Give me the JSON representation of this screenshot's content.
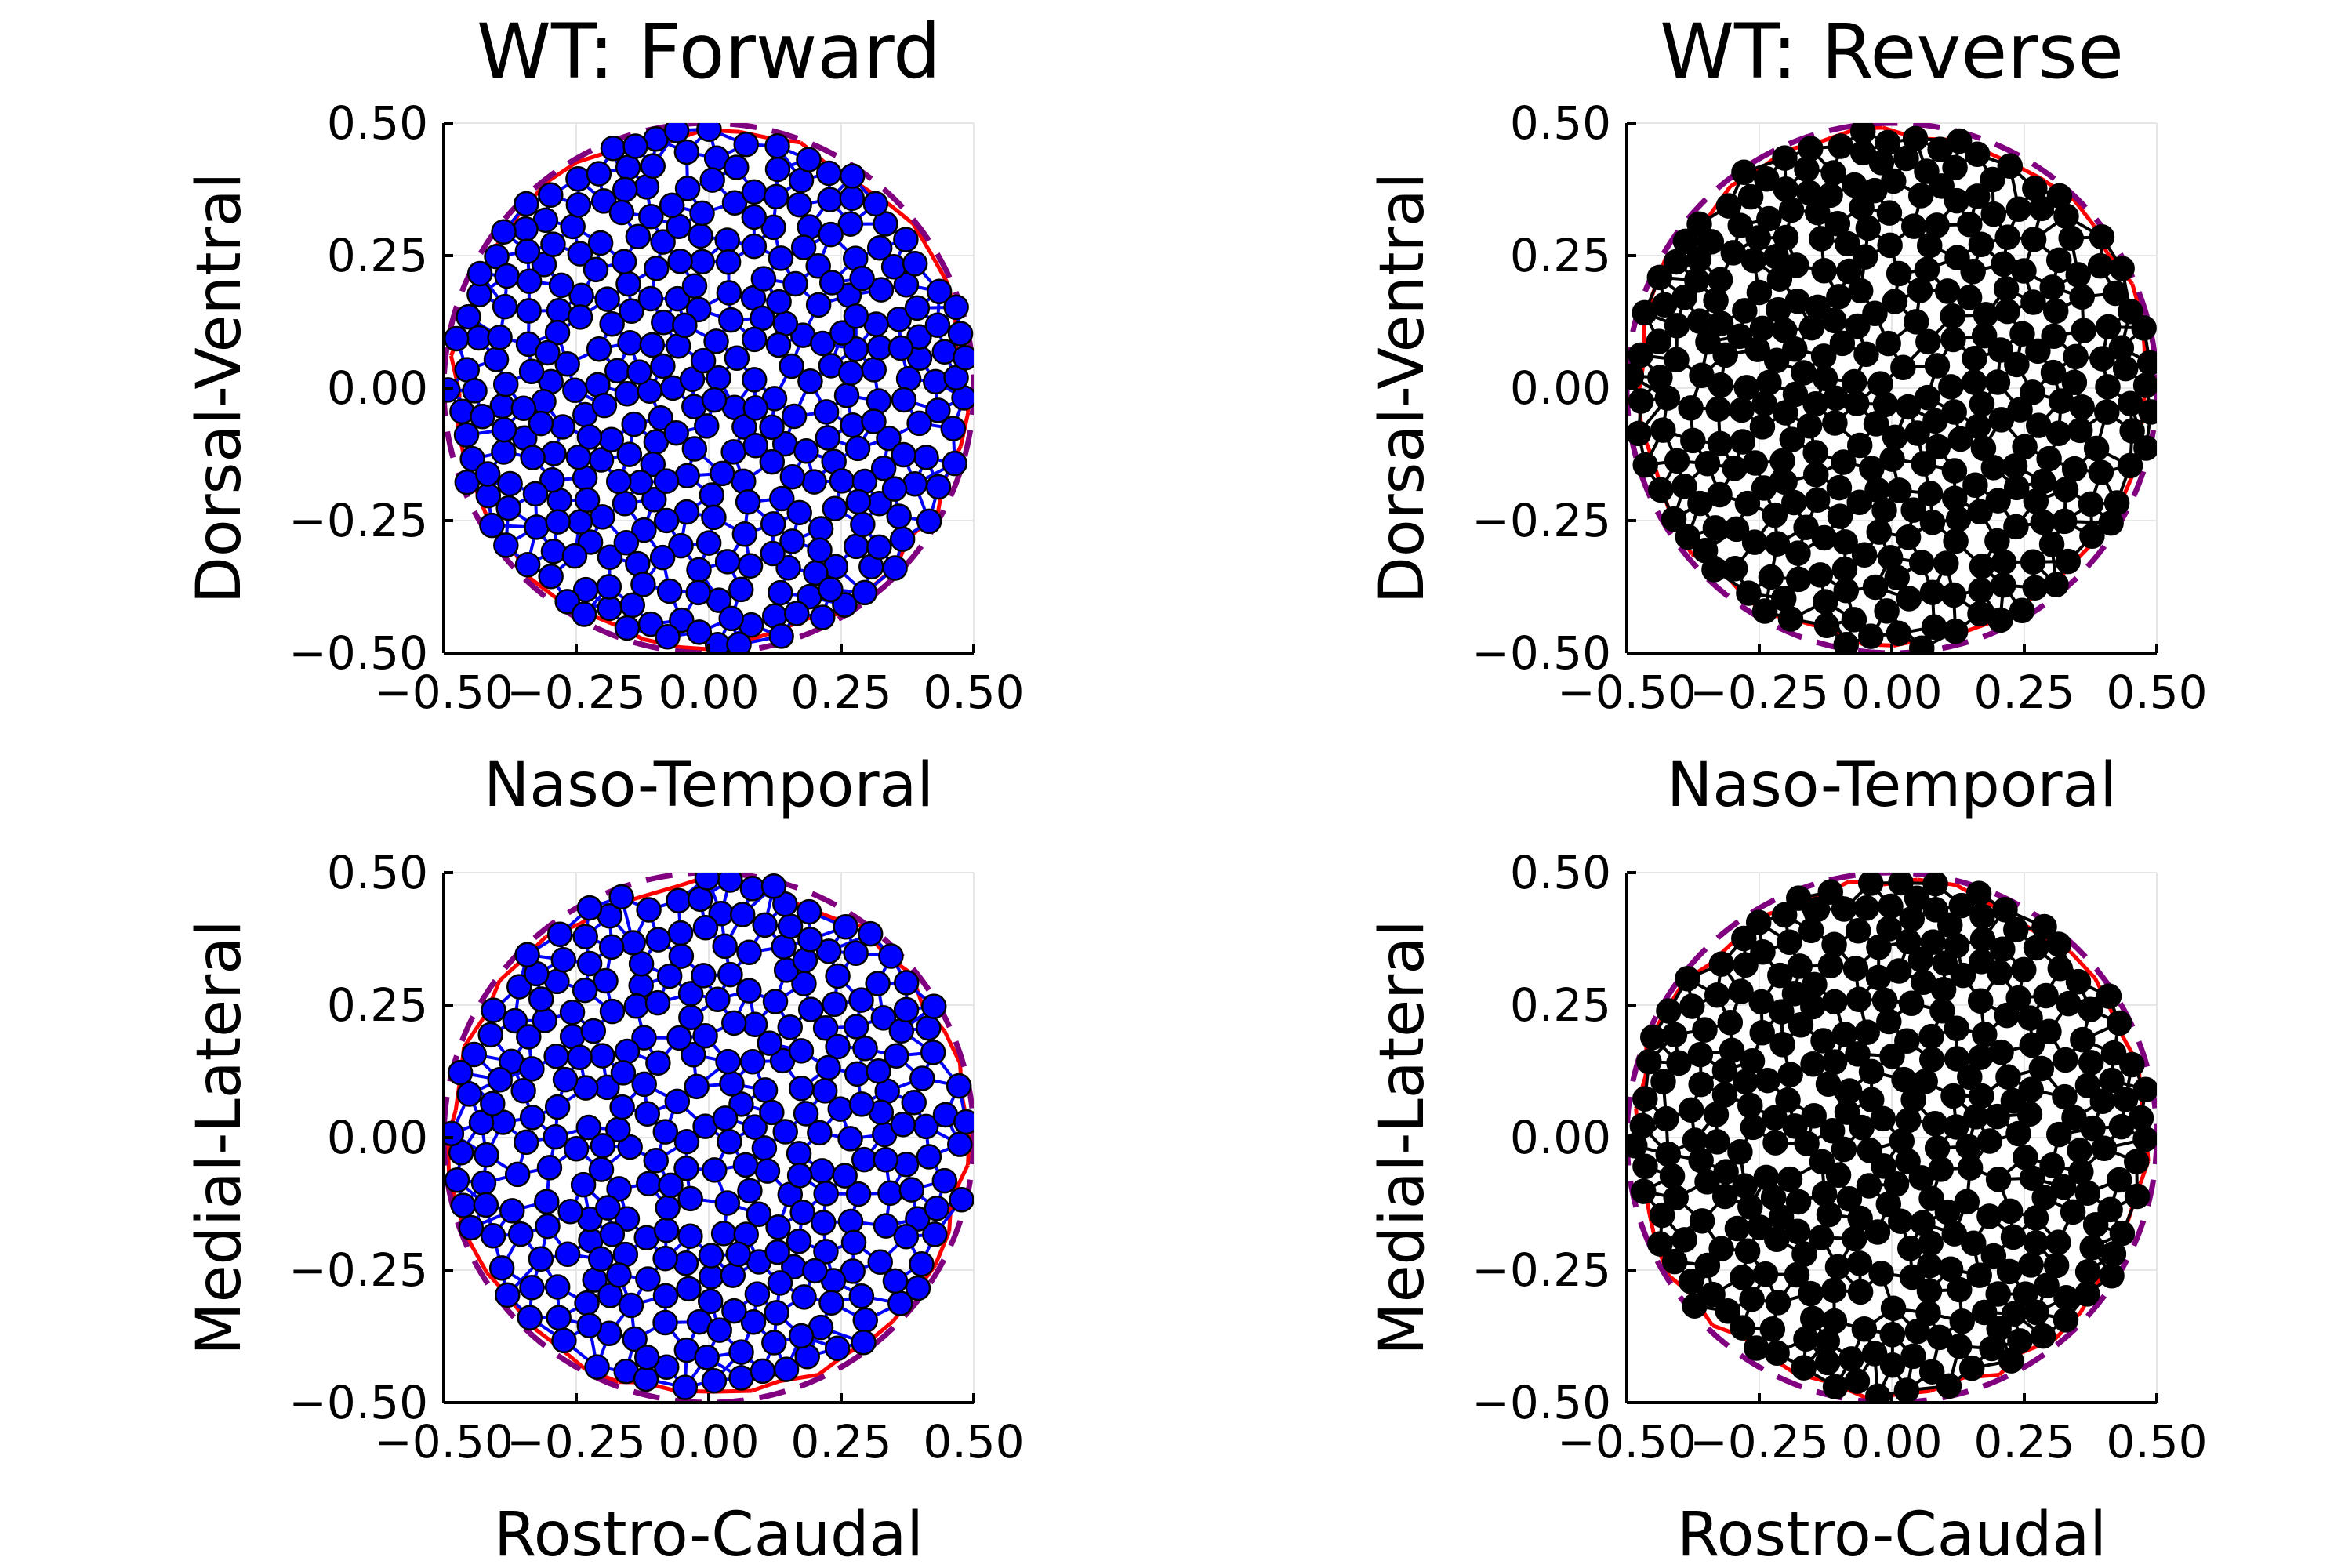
{
  "chart_data": [
    {
      "type": "scatter",
      "title": "WT: Forward",
      "xlabel": "Naso-Temporal",
      "ylabel": "Dorsal-Ventral",
      "xlim": [
        -0.5,
        0.5
      ],
      "ylim": [
        -0.5,
        0.5
      ],
      "xticks": [
        "−0.50",
        "−0.25",
        "0.00",
        "0.25",
        "0.50"
      ],
      "yticks": [
        "−0.50",
        "−0.25",
        "0.00",
        "0.25",
        "0.50"
      ],
      "grid": true,
      "point_color": "#0000ff",
      "edge_color": "#0000ff",
      "boundary_edge_color": "#ff0000",
      "circle": {
        "center": [
          0,
          0
        ],
        "radius": 0.5,
        "color": "#800080",
        "style": "dashed"
      },
      "points_estimated_count": 330
    },
    {
      "type": "scatter",
      "title": "WT: Reverse",
      "xlabel": "Naso-Temporal",
      "ylabel": "Dorsal-Ventral",
      "xlim": [
        -0.5,
        0.5
      ],
      "ylim": [
        -0.5,
        0.5
      ],
      "xticks": [
        "−0.50",
        "−0.25",
        "0.00",
        "0.25",
        "0.50"
      ],
      "yticks": [
        "−0.50",
        "−0.25",
        "0.00",
        "0.25",
        "0.50"
      ],
      "grid": true,
      "point_color": "#000000",
      "edge_color": "#000000",
      "boundary_edge_color": "#ff0000",
      "circle": {
        "center": [
          0,
          0
        ],
        "radius": 0.5,
        "color": "#800080",
        "style": "dashed"
      },
      "points_estimated_count": 330
    },
    {
      "type": "scatter",
      "title": "",
      "xlabel": "Rostro-Caudal",
      "ylabel": "Medial-Lateral",
      "xlim": [
        -0.5,
        0.5
      ],
      "ylim": [
        -0.5,
        0.5
      ],
      "xticks": [
        "−0.50",
        "−0.25",
        "0.00",
        "0.25",
        "0.50"
      ],
      "yticks": [
        "−0.50",
        "−0.25",
        "0.00",
        "0.25",
        "0.50"
      ],
      "grid": true,
      "point_color": "#0000ff",
      "edge_color": "#0000ff",
      "boundary_edge_color": "#ff0000",
      "circle": {
        "center": [
          0,
          0
        ],
        "radius": 0.5,
        "color": "#800080",
        "style": "dashed"
      },
      "points_estimated_count": 300
    },
    {
      "type": "scatter",
      "title": "",
      "xlabel": "Rostro-Caudal",
      "ylabel": "Medial-Lateral",
      "xlim": [
        -0.5,
        0.5
      ],
      "ylim": [
        -0.5,
        0.5
      ],
      "xticks": [
        "−0.50",
        "−0.25",
        "0.00",
        "0.25",
        "0.50"
      ],
      "yticks": [
        "−0.50",
        "−0.25",
        "0.00",
        "0.25",
        "0.50"
      ],
      "grid": true,
      "point_color": "#000000",
      "edge_color": "#000000",
      "boundary_edge_color": "#ff0000",
      "circle": {
        "center": [
          0,
          0
        ],
        "radius": 0.5,
        "color": "#800080",
        "style": "dashed"
      },
      "points_estimated_count": 330
    }
  ]
}
